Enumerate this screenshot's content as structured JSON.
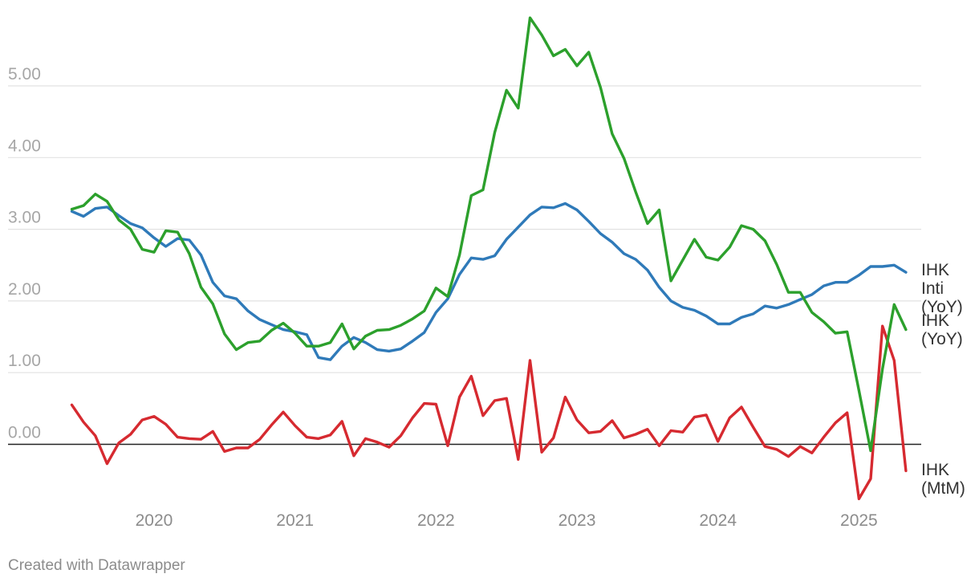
{
  "chart_data": {
    "type": "line",
    "ylim": [
      -0.9,
      6.0
    ],
    "y_ticks": [
      {
        "value": 5,
        "label": "5.00"
      },
      {
        "value": 4,
        "label": "4.00"
      },
      {
        "value": 3,
        "label": "3.00"
      },
      {
        "value": 2,
        "label": "2.00"
      },
      {
        "value": 1,
        "label": "1.00"
      },
      {
        "value": 0,
        "label": "0.00"
      }
    ],
    "x_ticks": [
      "2020",
      "2021",
      "2022",
      "2023",
      "2024",
      "2025"
    ],
    "x_start": "2019-06",
    "grid": true,
    "legend": "direct labels at line ends (right)",
    "series": [
      {
        "name": "IHK (YoY)",
        "color": "#2f7ab9",
        "label_lines": [
          "IHK",
          "(YoY)"
        ],
        "values": [
          3.25,
          3.18,
          3.29,
          3.31,
          3.19,
          3.08,
          3.02,
          2.88,
          2.76,
          2.87,
          2.85,
          2.64,
          2.26,
          2.07,
          2.03,
          1.86,
          1.74,
          1.67,
          1.6,
          1.57,
          1.53,
          1.21,
          1.18,
          1.37,
          1.49,
          1.42,
          1.32,
          1.3,
          1.33,
          1.44,
          1.56,
          1.84,
          2.03,
          2.37,
          2.6,
          2.58,
          2.63,
          2.86,
          3.03,
          3.2,
          3.31,
          3.3,
          3.36,
          3.27,
          3.11,
          2.94,
          2.82,
          2.66,
          2.58,
          2.43,
          2.19,
          2.0,
          1.91,
          1.87,
          1.79,
          1.68,
          1.68,
          1.77,
          1.82,
          1.93,
          1.9,
          1.95,
          2.02,
          2.09,
          2.21,
          2.26,
          2.26,
          2.36,
          2.48,
          2.48,
          2.5,
          2.4
        ]
      },
      {
        "name": "IHK Inti (YoY)",
        "color": "#2ca02c",
        "label_lines": [
          "IHK",
          "Inti",
          "(YoY)"
        ],
        "values": [
          3.28,
          3.33,
          3.49,
          3.39,
          3.13,
          3.0,
          2.72,
          2.68,
          2.98,
          2.96,
          2.66,
          2.19,
          1.96,
          1.54,
          1.32,
          1.42,
          1.44,
          1.59,
          1.69,
          1.55,
          1.37,
          1.37,
          1.42,
          1.68,
          1.33,
          1.51,
          1.59,
          1.6,
          1.66,
          1.75,
          1.86,
          2.18,
          2.06,
          2.64,
          3.47,
          3.55,
          4.35,
          4.94,
          4.69,
          5.95,
          5.71,
          5.42,
          5.51,
          5.28,
          5.47,
          4.98,
          4.33,
          3.99,
          3.52,
          3.08,
          3.27,
          2.28,
          2.57,
          2.86,
          2.61,
          2.57,
          2.75,
          3.05,
          3.0,
          2.84,
          2.51,
          2.12,
          2.12,
          1.84,
          1.71,
          1.55,
          1.57,
          0.75,
          -0.09,
          1.05,
          1.95,
          1.6
        ]
      },
      {
        "name": "IHK (MtM)",
        "color": "#d62a30",
        "label_lines": [
          "IHK",
          "(MtM)"
        ],
        "values": [
          0.55,
          0.31,
          0.12,
          -0.27,
          0.02,
          0.14,
          0.34,
          0.39,
          0.28,
          0.1,
          0.08,
          0.07,
          0.18,
          -0.1,
          -0.05,
          -0.05,
          0.07,
          0.27,
          0.45,
          0.26,
          0.1,
          0.08,
          0.13,
          0.32,
          -0.16,
          0.08,
          0.03,
          -0.04,
          0.12,
          0.37,
          0.57,
          0.56,
          -0.02,
          0.66,
          0.95,
          0.4,
          0.61,
          0.64,
          -0.21,
          1.17,
          -0.11,
          0.09,
          0.66,
          0.34,
          0.16,
          0.18,
          0.33,
          0.09,
          0.14,
          0.21,
          -0.02,
          0.19,
          0.17,
          0.38,
          0.41,
          0.04,
          0.37,
          0.52,
          0.24,
          -0.03,
          -0.07,
          -0.17,
          -0.03,
          -0.12,
          0.1,
          0.3,
          0.44,
          -0.76,
          -0.48,
          1.65,
          1.17,
          -0.37
        ]
      }
    ]
  },
  "footer": "Created with Datawrapper"
}
